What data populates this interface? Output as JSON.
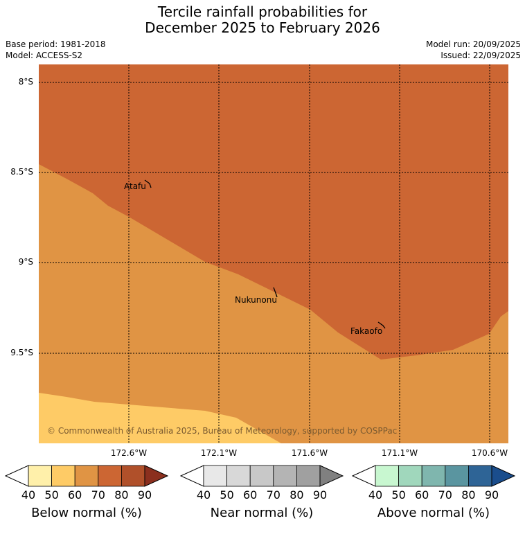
{
  "title": {
    "line1": "Tercile rainfall probabilities for",
    "line2": "December 2025 to February 2026"
  },
  "meta": {
    "base_period": "Base period: 1981-2018",
    "model": "Model: ACCESS-S2",
    "model_run": "Model run: 20/09/2025",
    "issued": "Issued: 22/09/2025"
  },
  "map": {
    "lat_labels": [
      "8°S",
      "8.5°S",
      "9°S",
      "9.5°S"
    ],
    "lon_labels": [
      "172.6°W",
      "172.1°W",
      "171.6°W",
      "171.1°W",
      "170.6°W"
    ],
    "places": [
      "Atafu",
      "Nukunonu",
      "Fakaofo"
    ],
    "copyright": "© Commonwealth of Australia 2025, Bureau of Meteorology, supported by COSPPac",
    "colors": {
      "below_50_60": "#fecb66",
      "below_60_70": "#e09444",
      "below_70_80": "#cc6633"
    }
  },
  "colorbars": [
    {
      "title": "Below normal (%)",
      "ticks": [
        "40",
        "50",
        "60",
        "70",
        "80",
        "90"
      ],
      "colors": [
        "#ffffff",
        "#fff0aa",
        "#fecb66",
        "#e09444",
        "#cc6633",
        "#b0502a",
        "#8b2f1e"
      ]
    },
    {
      "title": "Near normal (%)",
      "ticks": [
        "40",
        "50",
        "60",
        "70",
        "80",
        "90"
      ],
      "colors": [
        "#ffffff",
        "#e8e8e8",
        "#d8d8d8",
        "#c8c8c8",
        "#b4b4b4",
        "#a0a0a0",
        "#808080"
      ]
    },
    {
      "title": "Above normal (%)",
      "ticks": [
        "40",
        "50",
        "60",
        "70",
        "80",
        "90"
      ],
      "colors": [
        "#ffffff",
        "#c8f7d0",
        "#a0d7bc",
        "#7fb6ae",
        "#5a95a0",
        "#2e6496",
        "#1a4d8c"
      ]
    }
  ]
}
